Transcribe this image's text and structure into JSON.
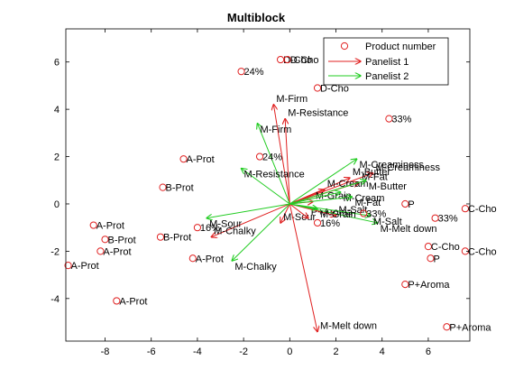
{
  "chart_data": {
    "type": "scatter",
    "title": "Multiblock",
    "xlabel": "",
    "ylabel": "",
    "xlim": [
      -9.7,
      7.8
    ],
    "ylim": [
      -5.8,
      7.4
    ],
    "xticks": [
      -8,
      -6,
      -4,
      -2,
      0,
      2,
      4,
      6
    ],
    "yticks": [
      -4,
      -2,
      0,
      2,
      4,
      6
    ],
    "grid": false,
    "legend_position": "top-right",
    "colors": {
      "points": "#e02020",
      "panelist1": "#e02020",
      "panelist2": "#22cc22",
      "axes": "#000000"
    },
    "legend": [
      {
        "label": "Product number",
        "marker": "circle",
        "color": "#e02020"
      },
      {
        "label": "Panelist 1",
        "marker": "arrow",
        "color": "#e02020"
      },
      {
        "label": "Panelist 2",
        "marker": "arrow",
        "color": "#22cc22"
      }
    ],
    "points": [
      {
        "label": "D-Cho",
        "x": -0.4,
        "y": 6.1
      },
      {
        "label": "D-Cho",
        "x": -0.1,
        "y": 6.1
      },
      {
        "label": "24%",
        "x": -2.1,
        "y": 5.6
      },
      {
        "label": "D-Cho",
        "x": 1.2,
        "y": 4.9
      },
      {
        "label": "33%",
        "x": 4.3,
        "y": 3.6
      },
      {
        "label": "24%",
        "x": -1.3,
        "y": 2.0
      },
      {
        "label": "A-Prot",
        "x": -4.6,
        "y": 1.9
      },
      {
        "label": "B-Prot",
        "x": -5.5,
        "y": 0.7
      },
      {
        "label": "P",
        "x": 5.0,
        "y": 0.0
      },
      {
        "label": "C-Cho",
        "x": 7.6,
        "y": -0.2
      },
      {
        "label": "33%",
        "x": 6.3,
        "y": -0.6
      },
      {
        "label": "A-Prot",
        "x": -8.5,
        "y": -0.9
      },
      {
        "label": "16%",
        "x": -4.0,
        "y": -1.0
      },
      {
        "label": "B-Prot",
        "x": -8.0,
        "y": -1.5
      },
      {
        "label": "B-Prot",
        "x": -5.6,
        "y": -1.4
      },
      {
        "label": "A-Prot",
        "x": -8.2,
        "y": -2.0
      },
      {
        "label": "A-Prot",
        "x": -4.2,
        "y": -2.3
      },
      {
        "label": "C-Cho",
        "x": 6.0,
        "y": -1.8
      },
      {
        "label": "C-Cho",
        "x": 7.6,
        "y": -2.0
      },
      {
        "label": "P",
        "x": 6.1,
        "y": -2.3
      },
      {
        "label": "A-Prot",
        "x": -9.6,
        "y": -2.6
      },
      {
        "label": "A-Prot",
        "x": -7.5,
        "y": -4.1
      },
      {
        "label": "P+Aroma",
        "x": 5.0,
        "y": -3.4
      },
      {
        "label": "P+Aroma",
        "x": 6.8,
        "y": -5.2
      },
      {
        "label": "16%",
        "x": 1.2,
        "y": -0.8
      },
      {
        "label": "33%",
        "x": 3.2,
        "y": -0.4
      }
    ],
    "panelist1_vectors": [
      {
        "label": "M-Firm",
        "x": -0.7,
        "y": 4.2
      },
      {
        "label": "M-Resistance",
        "x": -0.2,
        "y": 3.6
      },
      {
        "label": "M-Creaminess",
        "x": 3.6,
        "y": 1.3
      },
      {
        "label": "M-Butter",
        "x": 2.6,
        "y": 1.1
      },
      {
        "label": "M-Fat",
        "x": 3.0,
        "y": 0.9
      },
      {
        "label": "M-Cream",
        "x": 1.5,
        "y": 0.6
      },
      {
        "label": "M-Sour",
        "x": -0.4,
        "y": -0.8
      },
      {
        "label": "M-Chalky",
        "x": -3.4,
        "y": -1.4
      },
      {
        "label": "M-Melt down",
        "x": 1.2,
        "y": -5.4
      },
      {
        "label": "P+Aroma",
        "x": 0.8,
        "y": -0.6
      },
      {
        "label": "M-Salt",
        "x": 2.0,
        "y": -0.5
      },
      {
        "label": "M-Grain",
        "x": 1.0,
        "y": 0.1
      }
    ],
    "panelist2_vectors": [
      {
        "label": "M-Firm",
        "x": -1.4,
        "y": 3.4
      },
      {
        "label": "M-Resistance",
        "x": -2.1,
        "y": 1.5
      },
      {
        "label": "M-Creaminess",
        "x": 2.9,
        "y": 1.9
      },
      {
        "label": "M-Butter",
        "x": 3.3,
        "y": 1.0
      },
      {
        "label": "M-Cream",
        "x": 2.2,
        "y": 0.5
      },
      {
        "label": "M-Sour",
        "x": -3.6,
        "y": -0.6
      },
      {
        "label": "M-Chalky",
        "x": -2.5,
        "y": -2.4
      },
      {
        "label": "M-Melt down",
        "x": 3.8,
        "y": -0.8
      },
      {
        "label": "M-Salt",
        "x": 3.5,
        "y": -0.5
      },
      {
        "label": "M-Grain",
        "x": 1.2,
        "y": -0.2
      },
      {
        "label": "M-Fat",
        "x": 2.7,
        "y": 0.3
      }
    ]
  }
}
